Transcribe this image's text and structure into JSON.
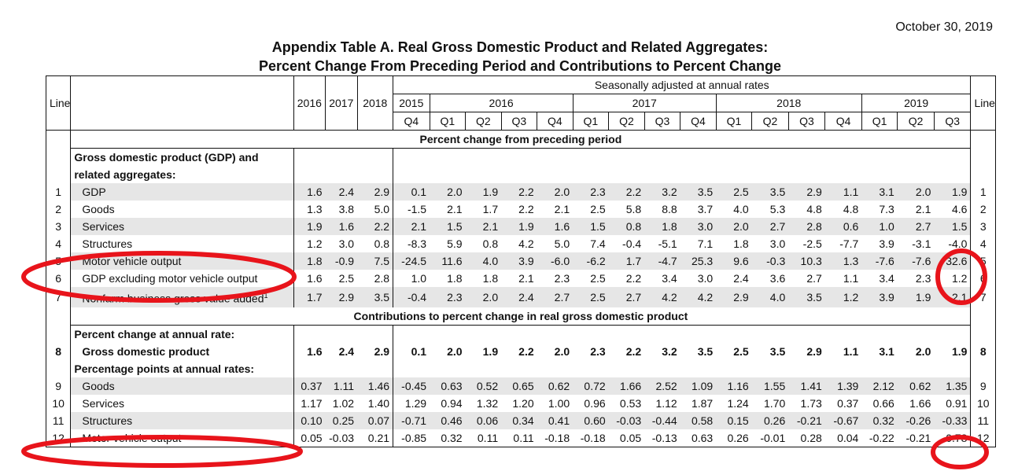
{
  "report_date": "October 30, 2019",
  "title_line1": "Appendix Table A. Real Gross Domestic Product and Related Aggregates:",
  "title_line2": "Percent Change From Preceding Period and Contributions to Percent Change",
  "headers": {
    "line": "Line",
    "seasonal": "Seasonally adjusted at annual rates",
    "annual_years": [
      "2016",
      "2017",
      "2018"
    ],
    "quarter_years": [
      "2015",
      "2016",
      "2017",
      "2018",
      "2019"
    ],
    "quarters": [
      "Q4",
      "Q1",
      "Q2",
      "Q3",
      "Q4",
      "Q1",
      "Q2",
      "Q3",
      "Q4",
      "Q1",
      "Q2",
      "Q3",
      "Q4",
      "Q1",
      "Q2",
      "Q3"
    ]
  },
  "section1": {
    "title": "Percent change from preceding period",
    "group_label_1": "Gross domestic product (GDP) and",
    "group_label_2": "related aggregates:",
    "rows": [
      {
        "line": "1",
        "label": "GDP",
        "values": [
          "1.6",
          "2.4",
          "2.9",
          "0.1",
          "2.0",
          "1.9",
          "2.2",
          "2.0",
          "2.3",
          "2.2",
          "3.2",
          "3.5",
          "2.5",
          "3.5",
          "2.9",
          "1.1",
          "3.1",
          "2.0",
          "1.9"
        ]
      },
      {
        "line": "2",
        "label": "Goods",
        "values": [
          "1.3",
          "3.8",
          "5.0",
          "-1.5",
          "2.1",
          "1.7",
          "2.2",
          "2.1",
          "2.5",
          "5.8",
          "8.8",
          "3.7",
          "4.0",
          "5.3",
          "4.8",
          "4.8",
          "7.3",
          "2.1",
          "4.6"
        ]
      },
      {
        "line": "3",
        "label": "Services",
        "values": [
          "1.9",
          "1.6",
          "2.2",
          "2.1",
          "1.5",
          "2.1",
          "1.9",
          "1.6",
          "1.5",
          "0.8",
          "1.8",
          "3.0",
          "2.0",
          "2.7",
          "2.8",
          "0.6",
          "1.0",
          "2.7",
          "1.5"
        ]
      },
      {
        "line": "4",
        "label": "Structures",
        "values": [
          "1.2",
          "3.0",
          "0.8",
          "-8.3",
          "5.9",
          "0.8",
          "4.2",
          "5.0",
          "7.4",
          "-0.4",
          "-5.1",
          "7.1",
          "1.8",
          "3.0",
          "-2.5",
          "-7.7",
          "3.9",
          "-3.1",
          "-4.0"
        ]
      },
      {
        "line": "5",
        "label": "Motor vehicle output",
        "values": [
          "1.8",
          "-0.9",
          "7.5",
          "-24.5",
          "11.6",
          "4.0",
          "3.9",
          "-6.0",
          "-6.2",
          "1.7",
          "-4.7",
          "25.3",
          "9.6",
          "-0.3",
          "10.3",
          "1.3",
          "-7.6",
          "-7.6",
          "32.6"
        ]
      },
      {
        "line": "6",
        "label": "GDP excluding motor vehicle output",
        "values": [
          "1.6",
          "2.5",
          "2.8",
          "1.0",
          "1.8",
          "1.8",
          "2.1",
          "2.3",
          "2.5",
          "2.2",
          "3.4",
          "3.0",
          "2.4",
          "3.6",
          "2.7",
          "1.1",
          "3.4",
          "2.3",
          "1.2"
        ]
      },
      {
        "line": "7",
        "label": "Nonfarm business gross value added",
        "footnote": "1",
        "values": [
          "1.7",
          "2.9",
          "3.5",
          "-0.4",
          "2.3",
          "2.0",
          "2.4",
          "2.7",
          "2.5",
          "2.7",
          "4.2",
          "4.2",
          "2.9",
          "4.0",
          "3.5",
          "1.2",
          "3.9",
          "1.9",
          "2.1"
        ]
      }
    ]
  },
  "section2": {
    "title": "Contributions to percent change in real gross domestic product",
    "pct_label": "Percent change at annual rate:",
    "gdp_row": {
      "line": "8",
      "label": "Gross domestic product",
      "values": [
        "1.6",
        "2.4",
        "2.9",
        "0.1",
        "2.0",
        "1.9",
        "2.2",
        "2.0",
        "2.3",
        "2.2",
        "3.2",
        "3.5",
        "2.5",
        "3.5",
        "2.9",
        "1.1",
        "3.1",
        "2.0",
        "1.9"
      ]
    },
    "pp_label": "Percentage points at annual rates:",
    "rows": [
      {
        "line": "9",
        "label": "Goods",
        "values": [
          "0.37",
          "1.11",
          "1.46",
          "-0.45",
          "0.63",
          "0.52",
          "0.65",
          "0.62",
          "0.72",
          "1.66",
          "2.52",
          "1.09",
          "1.16",
          "1.55",
          "1.41",
          "1.39",
          "2.12",
          "0.62",
          "1.35"
        ]
      },
      {
        "line": "10",
        "label": "Services",
        "values": [
          "1.17",
          "1.02",
          "1.40",
          "1.29",
          "0.94",
          "1.32",
          "1.20",
          "1.00",
          "0.96",
          "0.53",
          "1.12",
          "1.87",
          "1.24",
          "1.70",
          "1.73",
          "0.37",
          "0.66",
          "1.66",
          "0.91"
        ]
      },
      {
        "line": "11",
        "label": "Structures",
        "values": [
          "0.10",
          "0.25",
          "0.07",
          "-0.71",
          "0.46",
          "0.06",
          "0.34",
          "0.41",
          "0.60",
          "-0.03",
          "-0.44",
          "0.58",
          "0.15",
          "0.26",
          "-0.21",
          "-0.67",
          "0.32",
          "-0.26",
          "-0.33"
        ]
      },
      {
        "line": "12",
        "label": "Motor vehicle output",
        "values": [
          "0.05",
          "-0.03",
          "0.21",
          "-0.85",
          "0.32",
          "0.11",
          "0.11",
          "-0.18",
          "-0.18",
          "0.05",
          "-0.13",
          "0.63",
          "0.26",
          "-0.01",
          "0.28",
          "0.04",
          "-0.22",
          "-0.21",
          "0.78"
        ]
      }
    ]
  },
  "annotation_color": "#e8141b"
}
